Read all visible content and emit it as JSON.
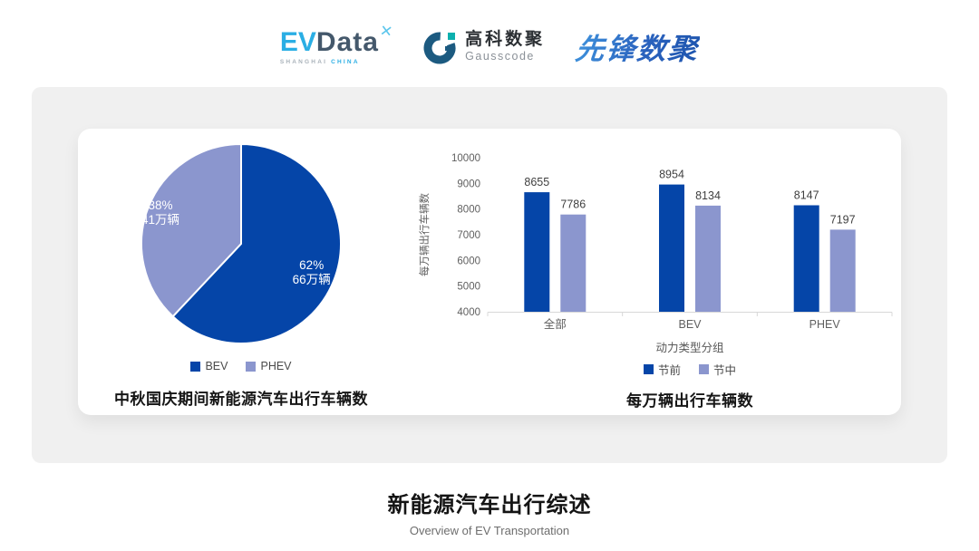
{
  "header": {
    "evdata": {
      "ev": "EV",
      "data": "Data",
      "spark": "✕",
      "sub1": "SHANGHAI",
      "sub2": "CHINA"
    },
    "gausscode": {
      "cn": "高科数聚",
      "en": "Gausscode"
    },
    "pioneer": {
      "text": "先锋数聚"
    }
  },
  "colors": {
    "dark_blue": "#0545a8",
    "light_blue": "#8b96ce",
    "panel_gray": "#f0f0f0",
    "axis_text": "#5f5f5f",
    "value_text": "#3f3f3f",
    "baseline": "#d8d8d8"
  },
  "chart_data": [
    {
      "type": "pie",
      "title": "中秋国庆期间新能源汽车出行车辆数",
      "labels": [
        "BEV",
        "PHEV"
      ],
      "values_pct": [
        62,
        38
      ],
      "values_abs": [
        "66万辆",
        "41万辆"
      ],
      "slice_label_lines": [
        [
          "62%",
          "66万辆"
        ],
        [
          "38%",
          "41万辆"
        ]
      ],
      "label_radius": [
        0.76,
        0.87
      ],
      "colors": [
        "#0545a8",
        "#8b96ce"
      ],
      "legend": [
        "BEV",
        "PHEV"
      ],
      "start_angle_deg": 0,
      "direction": "clockwise",
      "legend_position": "bottom"
    },
    {
      "type": "bar",
      "title": "每万辆出行车辆数",
      "categories": [
        "全部",
        "BEV",
        "PHEV"
      ],
      "series": [
        {
          "name": "节前",
          "color": "#0545a8",
          "values": [
            8655,
            8954,
            8147
          ]
        },
        {
          "name": "节中",
          "color": "#8b96ce",
          "values": [
            7786,
            8134,
            7197
          ]
        }
      ],
      "ylabel": "每万辆出行车辆数",
      "xlabel": "动力类型分组",
      "ylim": [
        4000,
        10000
      ],
      "yticks": [
        4000,
        5000,
        6000,
        7000,
        8000,
        9000,
        10000
      ],
      "grid": false,
      "legend_position": "bottom"
    }
  ],
  "footer": {
    "title": "新能源汽车出行综述",
    "subtitle": "Overview of EV Transportation"
  }
}
